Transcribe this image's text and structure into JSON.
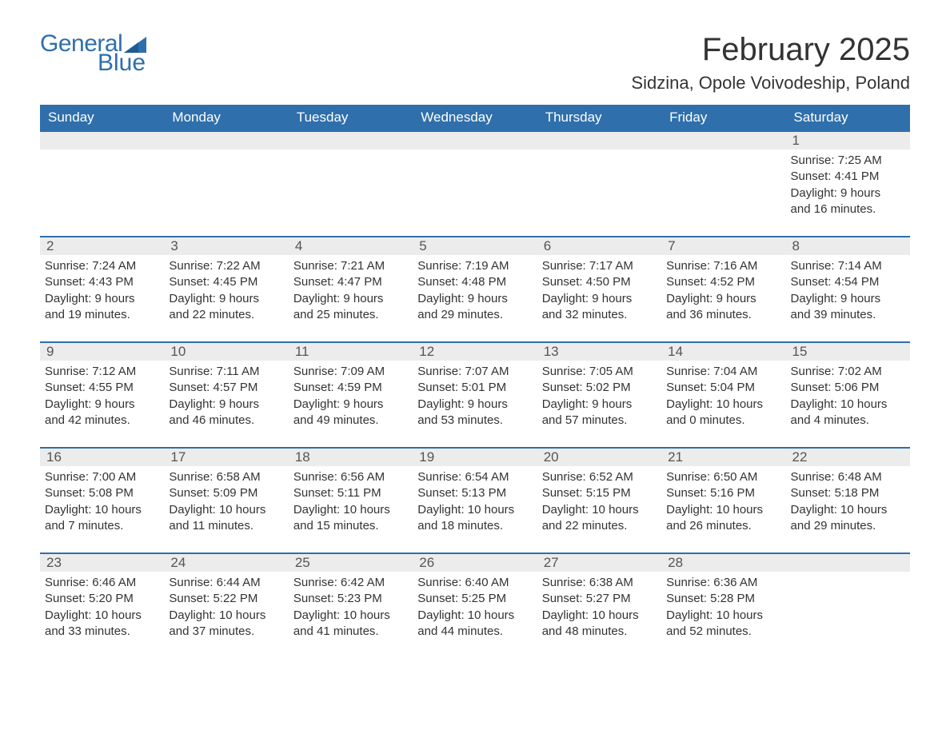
{
  "brand": {
    "text1": "General",
    "text2": "Blue",
    "flag_color": "#2f6fab"
  },
  "colors": {
    "header_bg": "#2f6fab",
    "header_text": "#ffffff",
    "stripe_bg": "#ececec",
    "body_text": "#333333",
    "rule": "#2f6fab"
  },
  "title": "February 2025",
  "location": "Sidzina, Opole Voivodeship, Poland",
  "dow": [
    "Sunday",
    "Monday",
    "Tuesday",
    "Wednesday",
    "Thursday",
    "Friday",
    "Saturday"
  ],
  "weeks": [
    [
      {
        "empty": true
      },
      {
        "empty": true
      },
      {
        "empty": true
      },
      {
        "empty": true
      },
      {
        "empty": true
      },
      {
        "empty": true
      },
      {
        "n": "1",
        "sr": "Sunrise: 7:25 AM",
        "ss": "Sunset: 4:41 PM",
        "dl": "Daylight: 9 hours and 16 minutes."
      }
    ],
    [
      {
        "n": "2",
        "sr": "Sunrise: 7:24 AM",
        "ss": "Sunset: 4:43 PM",
        "dl": "Daylight: 9 hours and 19 minutes."
      },
      {
        "n": "3",
        "sr": "Sunrise: 7:22 AM",
        "ss": "Sunset: 4:45 PM",
        "dl": "Daylight: 9 hours and 22 minutes."
      },
      {
        "n": "4",
        "sr": "Sunrise: 7:21 AM",
        "ss": "Sunset: 4:47 PM",
        "dl": "Daylight: 9 hours and 25 minutes."
      },
      {
        "n": "5",
        "sr": "Sunrise: 7:19 AM",
        "ss": "Sunset: 4:48 PM",
        "dl": "Daylight: 9 hours and 29 minutes."
      },
      {
        "n": "6",
        "sr": "Sunrise: 7:17 AM",
        "ss": "Sunset: 4:50 PM",
        "dl": "Daylight: 9 hours and 32 minutes."
      },
      {
        "n": "7",
        "sr": "Sunrise: 7:16 AM",
        "ss": "Sunset: 4:52 PM",
        "dl": "Daylight: 9 hours and 36 minutes."
      },
      {
        "n": "8",
        "sr": "Sunrise: 7:14 AM",
        "ss": "Sunset: 4:54 PM",
        "dl": "Daylight: 9 hours and 39 minutes."
      }
    ],
    [
      {
        "n": "9",
        "sr": "Sunrise: 7:12 AM",
        "ss": "Sunset: 4:55 PM",
        "dl": "Daylight: 9 hours and 42 minutes."
      },
      {
        "n": "10",
        "sr": "Sunrise: 7:11 AM",
        "ss": "Sunset: 4:57 PM",
        "dl": "Daylight: 9 hours and 46 minutes."
      },
      {
        "n": "11",
        "sr": "Sunrise: 7:09 AM",
        "ss": "Sunset: 4:59 PM",
        "dl": "Daylight: 9 hours and 49 minutes."
      },
      {
        "n": "12",
        "sr": "Sunrise: 7:07 AM",
        "ss": "Sunset: 5:01 PM",
        "dl": "Daylight: 9 hours and 53 minutes."
      },
      {
        "n": "13",
        "sr": "Sunrise: 7:05 AM",
        "ss": "Sunset: 5:02 PM",
        "dl": "Daylight: 9 hours and 57 minutes."
      },
      {
        "n": "14",
        "sr": "Sunrise: 7:04 AM",
        "ss": "Sunset: 5:04 PM",
        "dl": "Daylight: 10 hours and 0 minutes."
      },
      {
        "n": "15",
        "sr": "Sunrise: 7:02 AM",
        "ss": "Sunset: 5:06 PM",
        "dl": "Daylight: 10 hours and 4 minutes."
      }
    ],
    [
      {
        "n": "16",
        "sr": "Sunrise: 7:00 AM",
        "ss": "Sunset: 5:08 PM",
        "dl": "Daylight: 10 hours and 7 minutes."
      },
      {
        "n": "17",
        "sr": "Sunrise: 6:58 AM",
        "ss": "Sunset: 5:09 PM",
        "dl": "Daylight: 10 hours and 11 minutes."
      },
      {
        "n": "18",
        "sr": "Sunrise: 6:56 AM",
        "ss": "Sunset: 5:11 PM",
        "dl": "Daylight: 10 hours and 15 minutes."
      },
      {
        "n": "19",
        "sr": "Sunrise: 6:54 AM",
        "ss": "Sunset: 5:13 PM",
        "dl": "Daylight: 10 hours and 18 minutes."
      },
      {
        "n": "20",
        "sr": "Sunrise: 6:52 AM",
        "ss": "Sunset: 5:15 PM",
        "dl": "Daylight: 10 hours and 22 minutes."
      },
      {
        "n": "21",
        "sr": "Sunrise: 6:50 AM",
        "ss": "Sunset: 5:16 PM",
        "dl": "Daylight: 10 hours and 26 minutes."
      },
      {
        "n": "22",
        "sr": "Sunrise: 6:48 AM",
        "ss": "Sunset: 5:18 PM",
        "dl": "Daylight: 10 hours and 29 minutes."
      }
    ],
    [
      {
        "n": "23",
        "sr": "Sunrise: 6:46 AM",
        "ss": "Sunset: 5:20 PM",
        "dl": "Daylight: 10 hours and 33 minutes."
      },
      {
        "n": "24",
        "sr": "Sunrise: 6:44 AM",
        "ss": "Sunset: 5:22 PM",
        "dl": "Daylight: 10 hours and 37 minutes."
      },
      {
        "n": "25",
        "sr": "Sunrise: 6:42 AM",
        "ss": "Sunset: 5:23 PM",
        "dl": "Daylight: 10 hours and 41 minutes."
      },
      {
        "n": "26",
        "sr": "Sunrise: 6:40 AM",
        "ss": "Sunset: 5:25 PM",
        "dl": "Daylight: 10 hours and 44 minutes."
      },
      {
        "n": "27",
        "sr": "Sunrise: 6:38 AM",
        "ss": "Sunset: 5:27 PM",
        "dl": "Daylight: 10 hours and 48 minutes."
      },
      {
        "n": "28",
        "sr": "Sunrise: 6:36 AM",
        "ss": "Sunset: 5:28 PM",
        "dl": "Daylight: 10 hours and 52 minutes."
      },
      {
        "empty": true
      }
    ]
  ]
}
